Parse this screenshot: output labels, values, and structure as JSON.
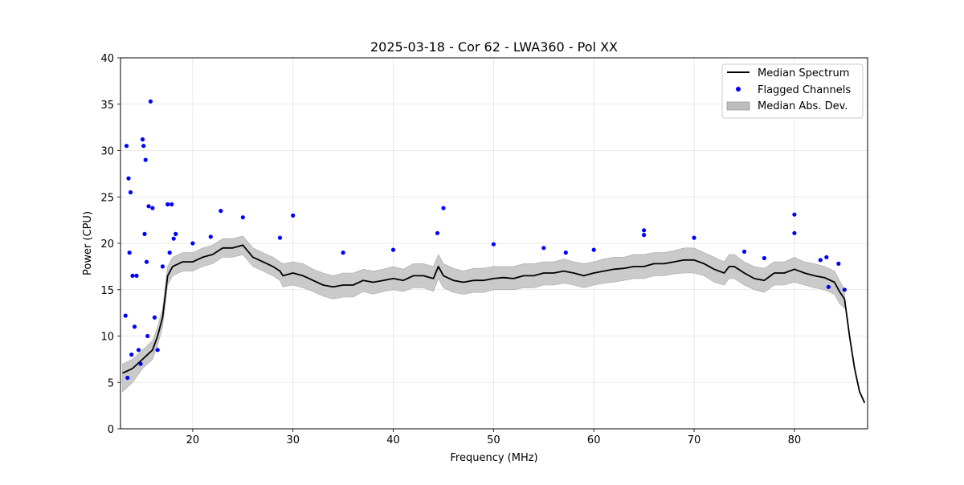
{
  "chart_data": {
    "type": "line",
    "title": "2025-03-18 - Cor 62 - LWA360 - Pol XX",
    "xlabel": "Frequency (MHz)",
    "ylabel": "Power (CPU)",
    "xlim": [
      12.8,
      87.3
    ],
    "ylim": [
      0,
      40
    ],
    "xticks": [
      20,
      30,
      40,
      50,
      60,
      70,
      80
    ],
    "yticks": [
      0,
      5,
      10,
      15,
      20,
      25,
      30,
      35,
      40
    ],
    "grid": true,
    "legend_position": "top-right",
    "legend": [
      "Median Spectrum",
      "Flagged Channels",
      "Median Abs. Dev."
    ],
    "colors": {
      "median": "#000000",
      "flagged": "#0000ff",
      "band": "#bdbdbd"
    },
    "series": [
      {
        "name": "Median Spectrum",
        "x": [
          13.0,
          14.0,
          15.0,
          16.0,
          16.5,
          17.0,
          17.5,
          18.0,
          19.0,
          20.0,
          21.0,
          22.0,
          23.0,
          24.0,
          25.0,
          26.0,
          27.0,
          28.0,
          28.7,
          29.0,
          30.0,
          31.0,
          32.0,
          33.0,
          34.0,
          35.0,
          36.0,
          37.0,
          38.0,
          39.0,
          40.0,
          41.0,
          42.0,
          43.0,
          44.0,
          44.5,
          45.0,
          46.0,
          47.0,
          48.0,
          49.0,
          50.0,
          51.0,
          52.0,
          53.0,
          54.0,
          55.0,
          56.0,
          57.0,
          58.0,
          59.0,
          60.0,
          61.0,
          62.0,
          63.0,
          64.0,
          65.0,
          66.0,
          67.0,
          68.0,
          69.0,
          70.0,
          71.0,
          72.0,
          73.0,
          73.5,
          74.0,
          75.0,
          76.0,
          77.0,
          78.0,
          79.0,
          80.0,
          81.0,
          82.0,
          83.0,
          84.0,
          84.5,
          85.0,
          85.5,
          86.0,
          86.5,
          87.0
        ],
        "values": [
          6.0,
          6.5,
          7.5,
          8.5,
          10.0,
          12.0,
          16.5,
          17.5,
          18.0,
          18.0,
          18.5,
          18.8,
          19.5,
          19.5,
          19.8,
          18.5,
          18.0,
          17.5,
          17.0,
          16.5,
          16.8,
          16.5,
          16.0,
          15.5,
          15.3,
          15.5,
          15.5,
          16.0,
          15.8,
          16.0,
          16.2,
          16.0,
          16.5,
          16.5,
          16.2,
          17.5,
          16.5,
          16.0,
          15.8,
          16.0,
          16.0,
          16.2,
          16.3,
          16.2,
          16.5,
          16.5,
          16.8,
          16.8,
          17.0,
          16.8,
          16.5,
          16.8,
          17.0,
          17.2,
          17.3,
          17.5,
          17.5,
          17.8,
          17.8,
          18.0,
          18.2,
          18.2,
          17.8,
          17.2,
          16.8,
          17.5,
          17.5,
          16.8,
          16.2,
          16.0,
          16.8,
          16.8,
          17.2,
          16.8,
          16.5,
          16.3,
          15.8,
          14.8,
          14.0,
          10.0,
          6.5,
          4.0,
          2.8
        ]
      },
      {
        "name": "Median Abs. Dev.",
        "x": [
          13.0,
          14.0,
          15.0,
          16.0,
          16.5,
          17.0,
          17.5,
          18.0,
          19.0,
          20.0,
          21.0,
          22.0,
          23.0,
          24.0,
          25.0,
          26.0,
          27.0,
          28.0,
          28.7,
          29.0,
          30.0,
          31.0,
          32.0,
          33.0,
          34.0,
          35.0,
          36.0,
          37.0,
          38.0,
          39.0,
          40.0,
          41.0,
          42.0,
          43.0,
          44.0,
          44.5,
          45.0,
          46.0,
          47.0,
          48.0,
          49.0,
          50.0,
          51.0,
          52.0,
          53.0,
          54.0,
          55.0,
          56.0,
          57.0,
          58.0,
          59.0,
          60.0,
          61.0,
          62.0,
          63.0,
          64.0,
          65.0,
          66.0,
          67.0,
          68.0,
          69.0,
          70.0,
          71.0,
          72.0,
          73.0,
          73.5,
          74.0,
          75.0,
          76.0,
          77.0,
          78.0,
          79.0,
          80.0,
          81.0,
          82.0,
          83.0,
          84.0,
          84.5,
          85.0
        ],
        "upper": [
          7.0,
          7.5,
          8.5,
          9.5,
          11.0,
          13.0,
          17.5,
          18.5,
          19.0,
          19.0,
          19.5,
          19.8,
          20.5,
          20.5,
          20.8,
          19.5,
          19.0,
          18.5,
          18.0,
          17.8,
          18.0,
          17.8,
          17.2,
          16.8,
          16.5,
          16.8,
          16.8,
          17.2,
          17.0,
          17.2,
          17.5,
          17.2,
          17.8,
          17.8,
          17.5,
          18.8,
          17.8,
          17.3,
          17.0,
          17.3,
          17.3,
          17.5,
          17.5,
          17.5,
          17.8,
          17.8,
          18.0,
          18.0,
          18.3,
          18.0,
          17.8,
          18.0,
          18.3,
          18.5,
          18.5,
          18.8,
          18.8,
          19.0,
          19.0,
          19.2,
          19.5,
          19.5,
          19.0,
          18.5,
          18.0,
          18.8,
          18.8,
          18.0,
          17.5,
          17.3,
          18.0,
          18.0,
          18.5,
          18.0,
          17.8,
          17.5,
          17.0,
          16.0,
          15.0
        ],
        "lower": [
          4.0,
          5.0,
          6.5,
          7.5,
          9.0,
          11.0,
          15.5,
          16.5,
          17.0,
          17.0,
          17.5,
          17.8,
          18.5,
          18.5,
          18.8,
          17.5,
          17.0,
          16.5,
          16.0,
          15.3,
          15.5,
          15.2,
          14.8,
          14.3,
          14.0,
          14.2,
          14.2,
          14.8,
          14.5,
          14.8,
          15.0,
          14.8,
          15.2,
          15.2,
          14.8,
          16.2,
          15.2,
          14.7,
          14.5,
          14.7,
          14.7,
          15.0,
          15.0,
          15.0,
          15.2,
          15.2,
          15.5,
          15.5,
          15.7,
          15.5,
          15.2,
          15.5,
          15.7,
          15.8,
          16.0,
          16.2,
          16.2,
          16.5,
          16.5,
          16.7,
          16.8,
          16.8,
          16.5,
          15.8,
          15.5,
          16.2,
          16.2,
          15.5,
          15.0,
          14.7,
          15.5,
          15.5,
          15.8,
          15.5,
          15.2,
          15.0,
          14.5,
          13.5,
          13.0
        ]
      },
      {
        "name": "Flagged Channels",
        "x": [
          13.3,
          13.4,
          13.5,
          13.6,
          13.7,
          13.8,
          13.9,
          14.0,
          14.2,
          14.4,
          14.6,
          14.8,
          15.0,
          15.1,
          15.2,
          15.3,
          15.4,
          15.5,
          15.6,
          15.8,
          16.0,
          16.2,
          16.5,
          17.0,
          17.5,
          17.7,
          17.9,
          18.1,
          18.3,
          20.0,
          21.8,
          22.8,
          25.0,
          28.7,
          30.0,
          35.0,
          40.0,
          44.4,
          45.0,
          50.0,
          55.0,
          57.2,
          60.0,
          65.0,
          65.0,
          70.0,
          75.0,
          77.0,
          80.0,
          80.0,
          82.6,
          83.2,
          83.4,
          84.4,
          85.0
        ],
        "values": [
          12.2,
          30.5,
          5.5,
          27.0,
          19.0,
          25.5,
          8.0,
          16.5,
          11.0,
          16.5,
          8.5,
          7.0,
          31.2,
          30.5,
          21.0,
          29.0,
          18.0,
          10.0,
          24.0,
          35.3,
          23.8,
          12.0,
          8.5,
          17.5,
          24.2,
          19.0,
          24.2,
          20.5,
          21.0,
          20.0,
          20.7,
          23.5,
          22.8,
          20.6,
          23.0,
          19.0,
          19.3,
          21.1,
          23.8,
          19.9,
          19.5,
          19.0,
          19.3,
          21.4,
          20.9,
          20.6,
          19.1,
          18.4,
          23.1,
          21.1,
          18.2,
          18.5,
          15.3,
          17.8,
          15.0
        ]
      }
    ]
  }
}
